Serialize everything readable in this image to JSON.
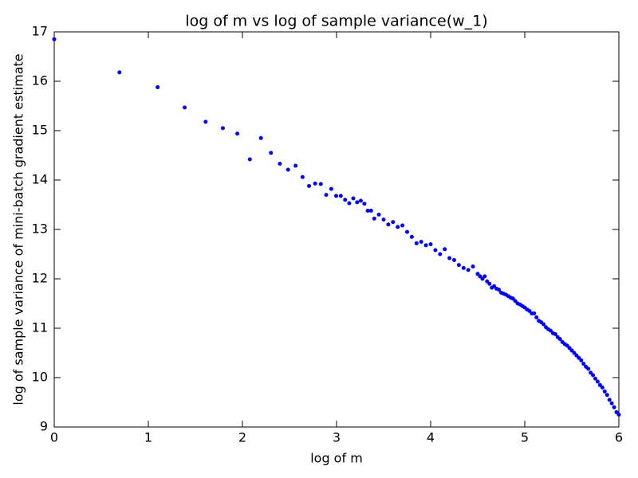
{
  "chart_data": {
    "type": "scatter",
    "title": "log of m vs log of sample variance(w_1)",
    "x_label": "log of m",
    "y_label": "log of sample variance of mini-batch gradient estimate",
    "color": "#0000ff",
    "xlim": [
      0,
      6
    ],
    "xticks": [
      0,
      1,
      2,
      3,
      4,
      5,
      6
    ],
    "ylim": [
      9,
      17
    ],
    "yticks": [
      9,
      10,
      11,
      12,
      13,
      14,
      15,
      16,
      17
    ],
    "x": [
      0,
      0.693,
      1.099,
      1.386,
      1.609,
      1.792,
      1.946,
      2.079,
      2.197,
      2.303,
      2.398,
      2.485,
      2.565,
      2.639,
      2.708,
      2.773,
      2.833,
      2.89,
      2.944,
      2.996,
      3.045,
      3.091,
      3.135,
      3.178,
      3.219,
      3.258,
      3.296,
      3.332,
      3.367,
      3.401,
      3.45,
      3.5,
      3.55,
      3.6,
      3.65,
      3.7,
      3.75,
      3.8,
      3.85,
      3.9,
      3.95,
      4.0,
      4.05,
      4.1,
      4.15,
      4.2,
      4.25,
      4.3,
      4.35,
      4.4,
      4.45,
      4.5,
      4.525,
      4.55,
      4.575,
      4.6,
      4.625,
      4.65,
      4.675,
      4.7,
      4.725,
      4.75,
      4.775,
      4.8,
      4.825,
      4.85,
      4.875,
      4.9,
      4.925,
      4.95,
      4.975,
      5.0,
      5.025,
      5.05,
      5.075,
      5.1,
      5.125,
      5.15,
      5.175,
      5.2,
      5.225,
      5.25,
      5.275,
      5.3,
      5.325,
      5.35,
      5.375,
      5.4,
      5.425,
      5.45,
      5.475,
      5.5,
      5.525,
      5.55,
      5.575,
      5.6,
      5.625,
      5.65,
      5.675,
      5.7,
      5.725,
      5.75,
      5.775,
      5.8,
      5.825,
      5.85,
      5.875,
      5.9,
      5.925,
      5.95,
      5.975,
      6.0
    ],
    "y": [
      16.85,
      16.18,
      15.88,
      15.47,
      15.18,
      15.05,
      14.94,
      14.42,
      14.85,
      14.55,
      14.33,
      14.21,
      14.29,
      14.06,
      13.88,
      13.93,
      13.92,
      13.7,
      13.82,
      13.68,
      13.68,
      13.6,
      13.53,
      13.63,
      13.55,
      13.58,
      13.52,
      13.38,
      13.38,
      13.22,
      13.3,
      13.2,
      13.1,
      13.15,
      13.05,
      13.08,
      12.95,
      12.85,
      12.72,
      12.75,
      12.68,
      12.7,
      12.58,
      12.5,
      12.6,
      12.42,
      12.38,
      12.28,
      12.22,
      12.18,
      12.25,
      12.1,
      12.05,
      12.0,
      12.05,
      11.95,
      11.9,
      11.82,
      11.85,
      11.8,
      11.78,
      11.72,
      11.7,
      11.68,
      11.65,
      11.62,
      11.6,
      11.55,
      11.5,
      11.48,
      11.45,
      11.42,
      11.38,
      11.35,
      11.3,
      11.3,
      11.22,
      11.15,
      11.12,
      11.08,
      11.02,
      10.98,
      10.95,
      10.9,
      10.88,
      10.82,
      10.78,
      10.72,
      10.68,
      10.65,
      10.6,
      10.55,
      10.5,
      10.45,
      10.4,
      10.35,
      10.28,
      10.22,
      10.18,
      10.1,
      10.05,
      9.98,
      9.92,
      9.85,
      9.8,
      9.72,
      9.65,
      9.55,
      9.48,
      9.4,
      9.3,
      9.25
    ]
  }
}
